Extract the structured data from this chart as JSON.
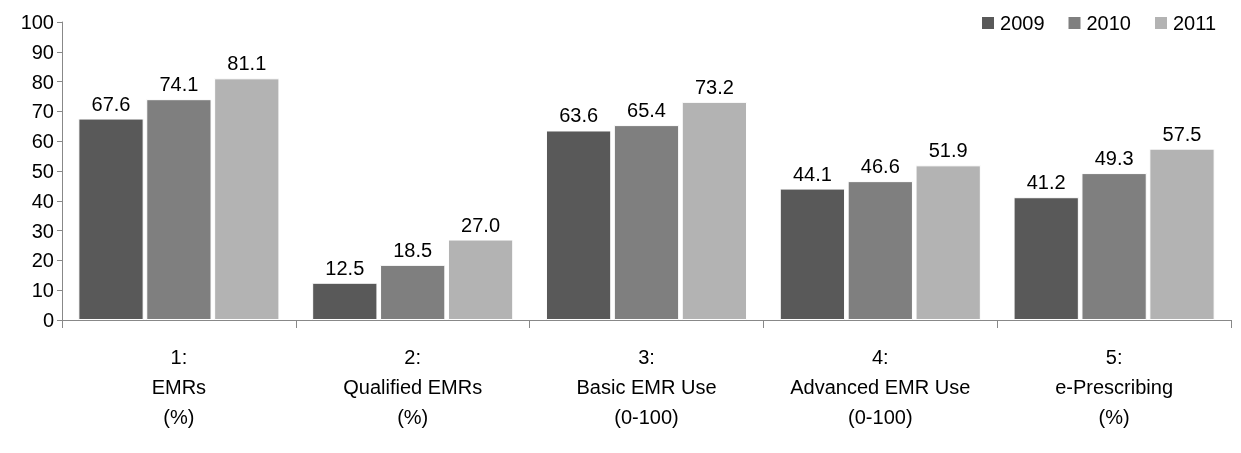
{
  "chart_data": {
    "type": "bar",
    "categories": [
      "1:\nEMRs\n(%)",
      "2:\nQualified EMRs\n(%)",
      "3:\nBasic EMR Use\n(0-100)",
      "4:\nAdvanced EMR Use\n(0-100)",
      "5:\ne-Prescribing\n(%)"
    ],
    "series": [
      {
        "name": "2009",
        "color": "#595959",
        "values": [
          67.6,
          12.5,
          63.6,
          44.1,
          41.2
        ],
        "value_labels": [
          "67.6",
          "12.5",
          "63.6",
          "44.1",
          "41.2"
        ]
      },
      {
        "name": "2010",
        "color": "#7f7f7f",
        "values": [
          74.1,
          18.5,
          65.4,
          46.6,
          49.3
        ],
        "value_labels": [
          "74.1",
          "18.5",
          "65.4",
          "46.6",
          "49.3"
        ]
      },
      {
        "name": "2011",
        "color": "#b3b3b3",
        "values": [
          81.1,
          27.0,
          73.2,
          51.9,
          57.5
        ],
        "value_labels": [
          "81.1",
          "27.0",
          "73.2",
          "51.9",
          "57.5"
        ]
      }
    ],
    "ylim": [
      0,
      100
    ],
    "yticks": [
      0,
      10,
      20,
      30,
      40,
      50,
      60,
      70,
      80,
      90,
      100
    ],
    "grid": false,
    "legend": "top right"
  }
}
